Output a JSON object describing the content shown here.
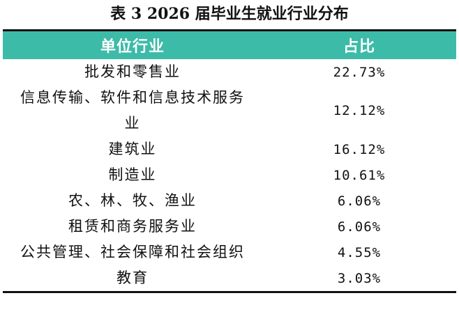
{
  "header": {
    "title": "表 3 2026 届毕业生就业行业分布"
  },
  "table": {
    "columns": [
      "单位行业",
      "占比"
    ],
    "rows": [
      [
        "批发和零售业",
        "22.73%"
      ],
      [
        "信息传输、软件和信息技术服务业",
        "12.12%"
      ],
      [
        "建筑业",
        "16.12%"
      ],
      [
        "制造业",
        "10.61%"
      ],
      [
        "农、林、牧、渔业",
        "6.06%"
      ],
      [
        "租赁和商务服务业",
        "6.06%"
      ],
      [
        "公共管理、社会保障和社会组织",
        "4.55%"
      ],
      [
        "教育",
        "3.03%"
      ]
    ]
  }
}
